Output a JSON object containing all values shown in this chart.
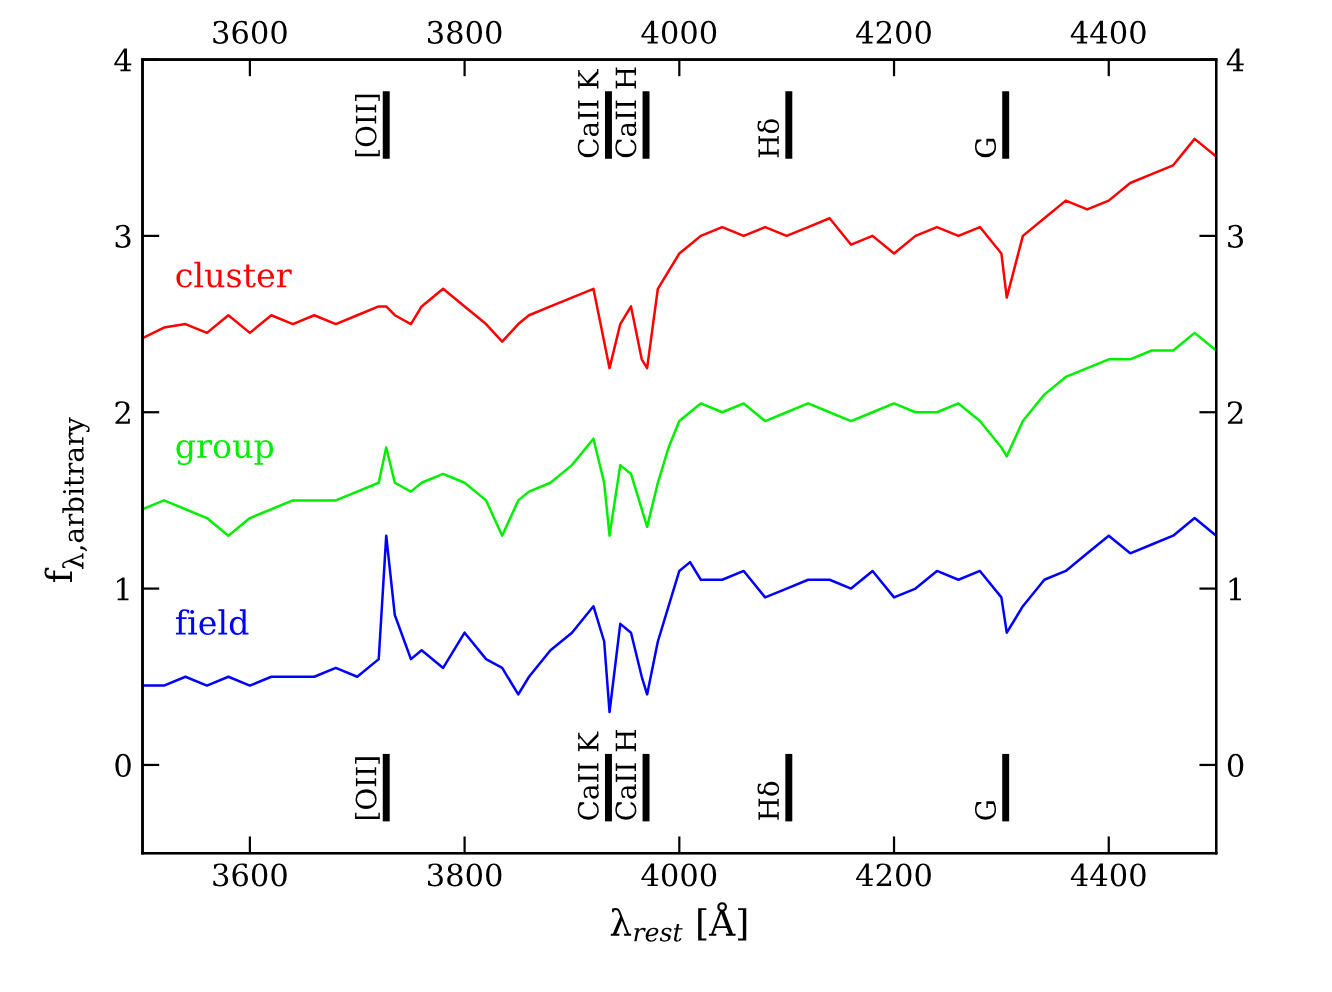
{
  "chart_data": {
    "type": "line",
    "xlabel": "λ$_{rest}$ [Å]",
    "ylabel": "f$_{λ,arbitrary}$",
    "xlim": [
      3500,
      4500
    ],
    "xticks": [
      3600,
      3800,
      4000,
      4200,
      4400
    ],
    "x2lim": [
      3500,
      4500
    ],
    "x2ticks": [
      3600,
      3800,
      4000,
      4200,
      4400
    ],
    "ylim": [
      -0.5,
      4
    ],
    "yticks": [
      0,
      1,
      2,
      3,
      4
    ],
    "y2lim": [
      -0.5,
      4
    ],
    "y2ticks": [
      0,
      1,
      2,
      3,
      4
    ],
    "grid": false,
    "legend": false,
    "marker": "none",
    "line_style": "solid",
    "x": [
      3500,
      3520,
      3540,
      3560,
      3580,
      3600,
      3620,
      3640,
      3660,
      3680,
      3700,
      3720,
      3727,
      3735,
      3750,
      3760,
      3780,
      3800,
      3820,
      3835,
      3850,
      3860,
      3880,
      3900,
      3920,
      3930,
      3935,
      3945,
      3955,
      3965,
      3970,
      3980,
      3990,
      4000,
      4010,
      4020,
      4040,
      4060,
      4080,
      4100,
      4120,
      4140,
      4160,
      4180,
      4200,
      4220,
      4240,
      4260,
      4280,
      4300,
      4305,
      4320,
      4340,
      4360,
      4380,
      4400,
      4420,
      4440,
      4460,
      4480,
      4500
    ],
    "series": [
      {
        "name": "cluster",
        "color": "#ff0000",
        "values": [
          2.42,
          2.48,
          2.5,
          2.45,
          2.55,
          2.45,
          2.55,
          2.5,
          2.55,
          2.5,
          2.55,
          2.6,
          2.6,
          2.55,
          2.5,
          2.6,
          2.7,
          2.6,
          2.5,
          2.4,
          2.5,
          2.55,
          2.6,
          2.65,
          2.7,
          2.4,
          2.25,
          2.5,
          2.6,
          2.3,
          2.25,
          2.7,
          2.8,
          2.9,
          2.95,
          3.0,
          3.05,
          3.0,
          3.05,
          3.0,
          3.05,
          3.1,
          2.95,
          3.0,
          2.9,
          3.0,
          3.05,
          3.0,
          3.05,
          2.9,
          2.65,
          3.0,
          3.1,
          3.2,
          3.15,
          3.2,
          3.3,
          3.35,
          3.4,
          3.55,
          3.45
        ]
      },
      {
        "name": "group",
        "color": "#00ee00",
        "values": [
          1.45,
          1.5,
          1.45,
          1.4,
          1.3,
          1.4,
          1.45,
          1.5,
          1.5,
          1.5,
          1.55,
          1.6,
          1.8,
          1.6,
          1.55,
          1.6,
          1.65,
          1.6,
          1.5,
          1.3,
          1.5,
          1.55,
          1.6,
          1.7,
          1.85,
          1.6,
          1.3,
          1.7,
          1.65,
          1.45,
          1.35,
          1.6,
          1.8,
          1.95,
          2.0,
          2.05,
          2.0,
          2.05,
          1.95,
          2.0,
          2.05,
          2.0,
          1.95,
          2.0,
          2.05,
          2.0,
          2.0,
          2.05,
          1.95,
          1.8,
          1.75,
          1.95,
          2.1,
          2.2,
          2.25,
          2.3,
          2.3,
          2.35,
          2.35,
          2.45,
          2.35
        ]
      },
      {
        "name": "field",
        "color": "#0000ff",
        "values": [
          0.45,
          0.45,
          0.5,
          0.45,
          0.5,
          0.45,
          0.5,
          0.5,
          0.5,
          0.55,
          0.5,
          0.6,
          1.3,
          0.85,
          0.6,
          0.65,
          0.55,
          0.75,
          0.6,
          0.55,
          0.4,
          0.5,
          0.65,
          0.75,
          0.9,
          0.7,
          0.3,
          0.8,
          0.75,
          0.5,
          0.4,
          0.7,
          0.9,
          1.1,
          1.15,
          1.05,
          1.05,
          1.1,
          0.95,
          1.0,
          1.05,
          1.05,
          1.0,
          1.1,
          0.95,
          1.0,
          1.1,
          1.05,
          1.1,
          0.95,
          0.75,
          0.9,
          1.05,
          1.1,
          1.2,
          1.3,
          1.2,
          1.25,
          1.3,
          1.4,
          1.3
        ]
      }
    ],
    "ref_lines": [
      {
        "axis": "x",
        "value": 3727,
        "label": "[OII]"
      },
      {
        "axis": "x",
        "value": 3934,
        "label": "CaII K"
      },
      {
        "axis": "x",
        "value": 3969,
        "label": "CaII H"
      },
      {
        "axis": "x",
        "value": 4102,
        "label": "Hδ"
      },
      {
        "axis": "x",
        "value": 4304,
        "label": "G"
      }
    ]
  }
}
